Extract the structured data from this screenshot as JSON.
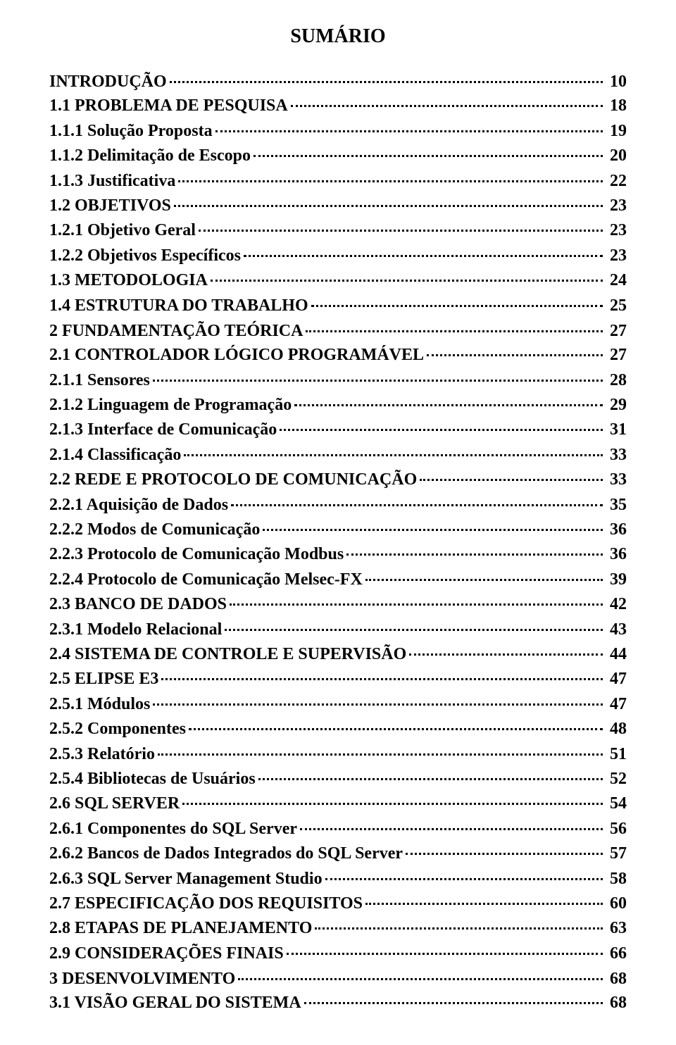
{
  "title": "SUMÁRIO",
  "font_family": "Times New Roman",
  "text_color": "#000000",
  "background_color": "#ffffff",
  "title_fontsize": 28,
  "line_fontsize": 24,
  "entries": [
    {
      "label": "INTRODUÇÃO",
      "page": "10",
      "level": "section"
    },
    {
      "label": "1.1  PROBLEMA DE PESQUISA",
      "page": "18",
      "level": "sub"
    },
    {
      "label": "1.1.1  Solução Proposta",
      "page": "19",
      "level": "sub"
    },
    {
      "label": "1.1.2  Delimitação de Escopo",
      "page": "20",
      "level": "sub"
    },
    {
      "label": "1.1.3  Justificativa",
      "page": "22",
      "level": "sub"
    },
    {
      "label": "1.2  OBJETIVOS",
      "page": "23",
      "level": "sub"
    },
    {
      "label": "1.2.1  Objetivo Geral",
      "page": "23",
      "level": "sub"
    },
    {
      "label": "1.2.2  Objetivos Específicos",
      "page": "23",
      "level": "sub"
    },
    {
      "label": "1.3  METODOLOGIA",
      "page": "24",
      "level": "sub"
    },
    {
      "label": "1.4  ESTRUTURA DO TRABALHO",
      "page": "25",
      "level": "sub"
    },
    {
      "label": "2   FUNDAMENTAÇÃO TEÓRICA",
      "page": "27",
      "level": "section"
    },
    {
      "label": "2.1  CONTROLADOR LÓGICO PROGRAMÁVEL",
      "page": "27",
      "level": "sub"
    },
    {
      "label": "2.1.1  Sensores",
      "page": "28",
      "level": "sub"
    },
    {
      "label": "2.1.2  Linguagem de Programação",
      "page": "29",
      "level": "sub"
    },
    {
      "label": "2.1.3  Interface de Comunicação",
      "page": "31",
      "level": "sub"
    },
    {
      "label": "2.1.4  Classificação",
      "page": "33",
      "level": "sub"
    },
    {
      "label": "2.2  REDE E PROTOCOLO DE COMUNICAÇÃO",
      "page": "33",
      "level": "sub"
    },
    {
      "label": "2.2.1  Aquisição de Dados",
      "page": "35",
      "level": "sub"
    },
    {
      "label": "2.2.2  Modos de Comunicação",
      "page": "36",
      "level": "sub"
    },
    {
      "label": "2.2.3  Protocolo de Comunicação Modbus",
      "page": "36",
      "level": "sub"
    },
    {
      "label": "2.2.4  Protocolo de Comunicação Melsec-FX",
      "page": "39",
      "level": "sub"
    },
    {
      "label": "2.3  BANCO DE DADOS",
      "page": "42",
      "level": "sub"
    },
    {
      "label": "2.3.1  Modelo Relacional",
      "page": "43",
      "level": "sub"
    },
    {
      "label": "2.4  SISTEMA DE CONTROLE E SUPERVISÃO",
      "page": "44",
      "level": "sub"
    },
    {
      "label": "2.5  ELIPSE E3",
      "page": "47",
      "level": "sub"
    },
    {
      "label": "2.5.1  Módulos",
      "page": "47",
      "level": "sub"
    },
    {
      "label": "2.5.2  Componentes",
      "page": "48",
      "level": "sub"
    },
    {
      "label": "2.5.3  Relatório",
      "page": "51",
      "level": "sub"
    },
    {
      "label": "2.5.4  Bibliotecas de Usuários",
      "page": "52",
      "level": "sub"
    },
    {
      "label": "2.6  SQL SERVER",
      "page": "54",
      "level": "sub"
    },
    {
      "label": "2.6.1  Componentes do SQL Server",
      "page": "56",
      "level": "sub"
    },
    {
      "label": "2.6.2  Bancos de Dados Integrados do SQL Server",
      "page": "57",
      "level": "sub"
    },
    {
      "label": "2.6.3  SQL Server Management Studio",
      "page": "58",
      "level": "sub"
    },
    {
      "label": "2.7  ESPECIFICAÇÃO DOS REQUISITOS",
      "page": "60",
      "level": "sub"
    },
    {
      "label": "2.8  ETAPAS DE PLANEJAMENTO",
      "page": "63",
      "level": "sub"
    },
    {
      "label": "2.9  CONSIDERAÇÕES FINAIS",
      "page": "66",
      "level": "sub"
    },
    {
      "label": "3   DESENVOLVIMENTO",
      "page": "68",
      "level": "section"
    },
    {
      "label": "3.1  VISÃO GERAL DO SISTEMA",
      "page": "68",
      "level": "sub"
    }
  ]
}
